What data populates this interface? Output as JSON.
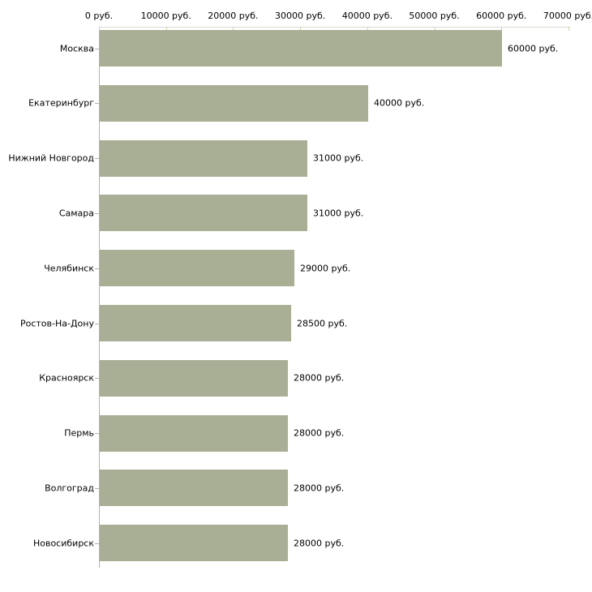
{
  "chart_data": {
    "type": "bar",
    "orientation": "horizontal",
    "title": "",
    "xlabel": "",
    "ylabel": "",
    "unit": "руб.",
    "grid": false,
    "legend": false,
    "xlim": [
      0,
      70000
    ],
    "x_ticks": [
      0,
      10000,
      20000,
      30000,
      40000,
      50000,
      60000,
      70000
    ],
    "x_tick_labels": [
      "0 руб.",
      "10000 руб.",
      "20000 руб.",
      "30000 руб.",
      "40000 руб.",
      "50000 руб.",
      "60000 руб.",
      "70000 руб."
    ],
    "categories": [
      "Москва",
      "Екатеринбург",
      "Нижний Новгород",
      "Самара",
      "Челябинск",
      "Ростов-На-Дону",
      "Красноярск",
      "Пермь",
      "Волгоград",
      "Новосибирск"
    ],
    "values": [
      60000,
      40000,
      31000,
      31000,
      29000,
      28500,
      28000,
      28000,
      28000,
      28000
    ],
    "value_labels": [
      "60000 руб.",
      "40000 руб.",
      "31000 руб.",
      "31000 руб.",
      "29000 руб.",
      "28500 руб.",
      "28000 руб.",
      "28000 руб.",
      "28000 руб.",
      "28000 руб."
    ],
    "colors": {
      "bar": "#a9af95",
      "x_axis_line": "#d8dbd0",
      "x_tick_mark": "#cfd2ac",
      "y_axis_line": "#b3b3ad",
      "y_tick_mark": "#b3b3a6",
      "text": "#000000",
      "background": "#ffffff"
    }
  }
}
